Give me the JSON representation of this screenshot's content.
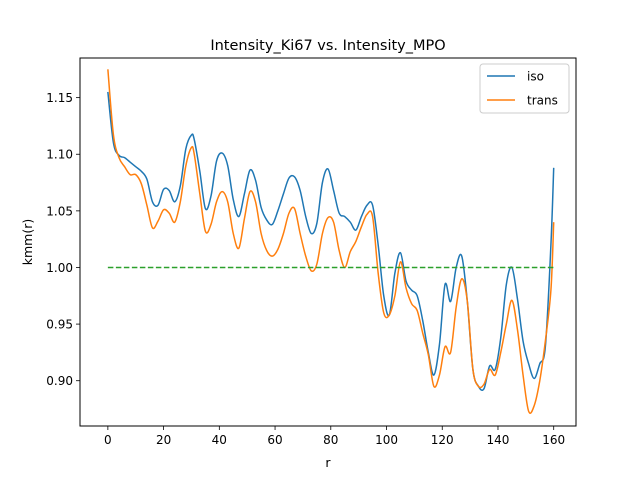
{
  "chart_data": {
    "type": "line",
    "title": "Intensity_Ki67 vs. Intensity_MPO",
    "xlabel": "r",
    "ylabel": "kmm(r)",
    "xlim": [
      -10,
      168
    ],
    "ylim": [
      0.86,
      1.185
    ],
    "xticks": [
      0,
      20,
      40,
      60,
      80,
      100,
      120,
      140,
      160
    ],
    "yticks": [
      0.9,
      0.95,
      1.0,
      1.05,
      1.1,
      1.15
    ],
    "ytick_labels": [
      "0.90",
      "0.95",
      "1.00",
      "1.05",
      "1.10",
      "1.15"
    ],
    "legend_position": "top-right",
    "grid": false,
    "series": [
      {
        "name": "iso",
        "color": "#1f77b4",
        "x": [
          0,
          2,
          4,
          6,
          8,
          10,
          12,
          14,
          16,
          18,
          20,
          22,
          24,
          26,
          28,
          30,
          31,
          33,
          35,
          37,
          39,
          41,
          43,
          45,
          47,
          49,
          51,
          53,
          55,
          57,
          59,
          61,
          63,
          65,
          67,
          69,
          71,
          73,
          75,
          77,
          79,
          81,
          83,
          85,
          87,
          89,
          91,
          93,
          95,
          97,
          99,
          101,
          103,
          105,
          107,
          109,
          111,
          113,
          115,
          117,
          119,
          121,
          123,
          125,
          127,
          129,
          131,
          133,
          135,
          137,
          139,
          141,
          143,
          145,
          147,
          149,
          151,
          153,
          155,
          157,
          159,
          160
        ],
        "values": [
          1.155,
          1.11,
          1.099,
          1.097,
          1.093,
          1.089,
          1.085,
          1.078,
          1.058,
          1.055,
          1.069,
          1.068,
          1.058,
          1.072,
          1.105,
          1.117,
          1.113,
          1.085,
          1.052,
          1.063,
          1.094,
          1.101,
          1.09,
          1.06,
          1.045,
          1.065,
          1.086,
          1.077,
          1.053,
          1.042,
          1.038,
          1.05,
          1.065,
          1.079,
          1.08,
          1.068,
          1.045,
          1.03,
          1.039,
          1.075,
          1.087,
          1.068,
          1.048,
          1.045,
          1.04,
          1.033,
          1.045,
          1.055,
          1.055,
          1.02,
          0.975,
          0.958,
          0.995,
          1.013,
          0.988,
          0.98,
          0.975,
          0.953,
          0.925,
          0.905,
          0.932,
          0.985,
          0.97,
          1.0,
          1.01,
          0.97,
          0.91,
          0.895,
          0.893,
          0.913,
          0.91,
          0.938,
          0.985,
          1.0,
          0.972,
          0.935,
          0.915,
          0.902,
          0.915,
          0.93,
          1.02,
          1.088
        ]
      },
      {
        "name": "trans",
        "color": "#ff7f0e",
        "x": [
          0,
          2,
          4,
          6,
          8,
          10,
          12,
          14,
          16,
          18,
          20,
          22,
          24,
          26,
          28,
          30,
          31,
          33,
          35,
          37,
          39,
          41,
          43,
          45,
          47,
          49,
          51,
          53,
          55,
          57,
          59,
          61,
          63,
          65,
          67,
          69,
          71,
          73,
          75,
          77,
          79,
          81,
          83,
          85,
          87,
          89,
          91,
          93,
          95,
          97,
          99,
          101,
          103,
          105,
          107,
          109,
          111,
          113,
          115,
          117,
          119,
          121,
          123,
          125,
          127,
          129,
          131,
          133,
          135,
          137,
          139,
          141,
          143,
          145,
          147,
          149,
          151,
          153,
          155,
          157,
          159,
          160
        ],
        "values": [
          1.175,
          1.117,
          1.097,
          1.089,
          1.082,
          1.082,
          1.074,
          1.055,
          1.035,
          1.041,
          1.051,
          1.048,
          1.04,
          1.058,
          1.09,
          1.106,
          1.1,
          1.065,
          1.032,
          1.038,
          1.058,
          1.067,
          1.058,
          1.03,
          1.017,
          1.043,
          1.067,
          1.058,
          1.03,
          1.015,
          1.01,
          1.016,
          1.03,
          1.048,
          1.052,
          1.03,
          1.01,
          0.997,
          1.003,
          1.03,
          1.044,
          1.04,
          1.015,
          1.0,
          1.014,
          1.023,
          1.036,
          1.047,
          1.045,
          0.995,
          0.96,
          0.958,
          0.975,
          1.005,
          0.982,
          0.968,
          0.962,
          0.942,
          0.923,
          0.895,
          0.905,
          0.93,
          0.925,
          0.965,
          0.99,
          0.97,
          0.91,
          0.895,
          0.897,
          0.91,
          0.905,
          0.925,
          0.95,
          0.971,
          0.945,
          0.905,
          0.873,
          0.878,
          0.9,
          0.935,
          0.98,
          1.04
        ]
      },
      {
        "name": "",
        "color": "#2ca02c",
        "dashed": true,
        "x": [
          0,
          160
        ],
        "values": [
          1.0,
          1.0
        ]
      }
    ]
  }
}
